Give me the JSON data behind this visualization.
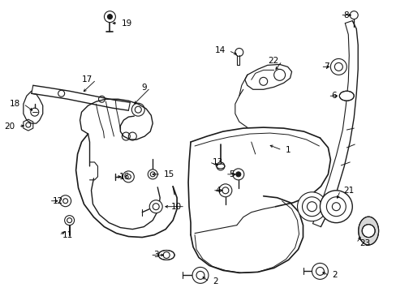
{
  "bg_color": "#ffffff",
  "line_color": "#1a1a1a",
  "figsize": [
    4.89,
    3.6
  ],
  "dpi": 100,
  "label_fontsize": 7.0,
  "callout_lw": 0.55
}
